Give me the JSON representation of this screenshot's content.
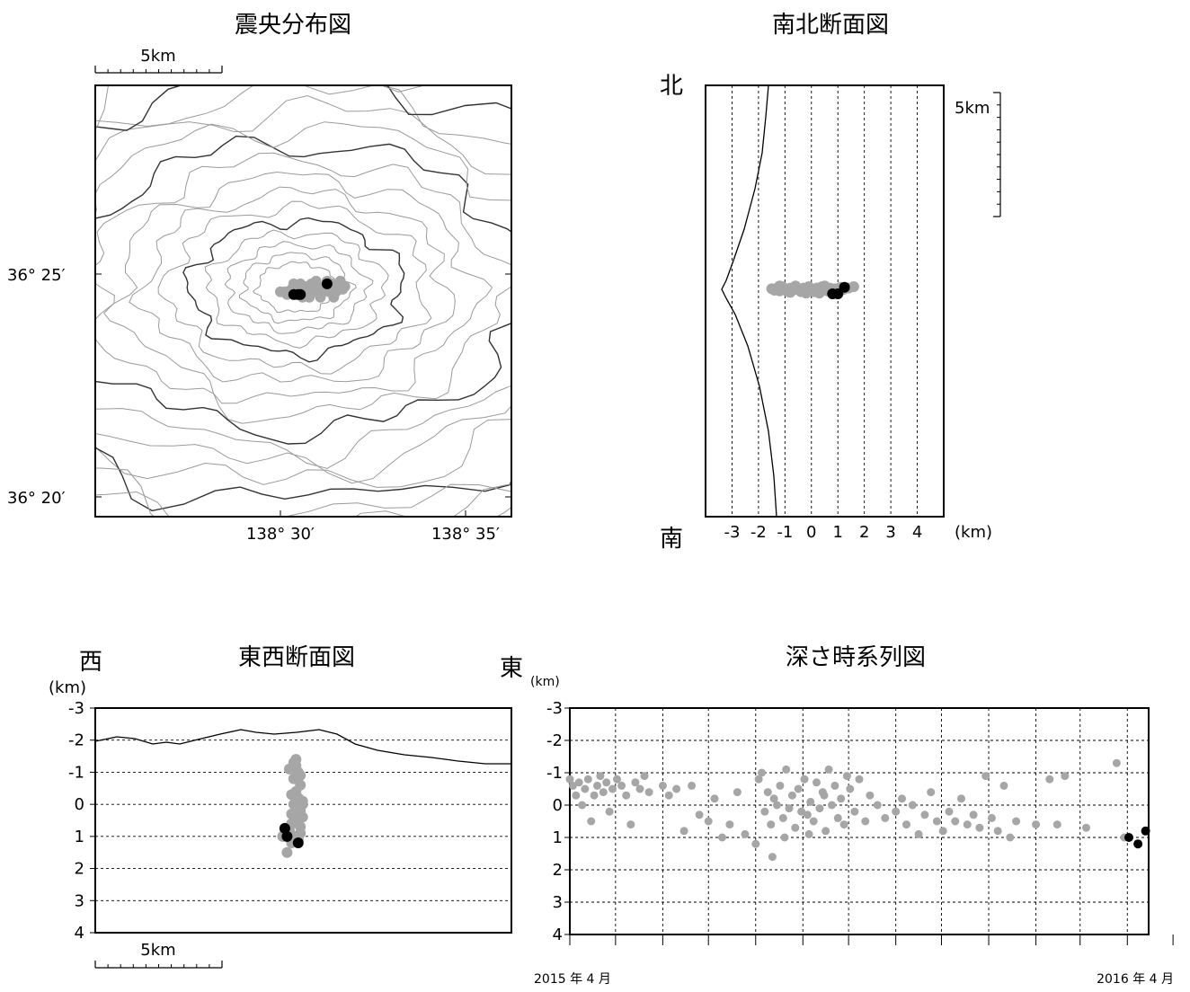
{
  "chart_data": [
    {
      "type": "scatter",
      "panel": "epicenter-map",
      "title": "震央分布図",
      "scale_bar": "5km",
      "x_ticks": [
        "138° 30′",
        "138° 35′"
      ],
      "y_ticks": [
        "36° 25′",
        "36° 20′"
      ],
      "colors": {
        "past": "#a6a6a6",
        "recent": "#000000",
        "contour": "#9a9a9a",
        "contour_major": "#333333"
      },
      "series": [
        {
          "name": "",
          "color": "#a6a6a6",
          "points": [
            [
              138.502,
              36.41
            ],
            [
              138.505,
              36.411
            ],
            [
              138.508,
              36.412
            ],
            [
              138.511,
              36.412
            ],
            [
              138.514,
              36.413
            ],
            [
              138.517,
              36.412
            ],
            [
              138.52,
              36.412
            ],
            [
              138.523,
              36.413
            ],
            [
              138.526,
              36.412
            ],
            [
              138.528,
              36.411
            ],
            [
              138.503,
              36.409
            ],
            [
              138.507,
              36.409
            ],
            [
              138.511,
              36.41
            ],
            [
              138.515,
              36.41
            ],
            [
              138.519,
              36.41
            ],
            [
              138.522,
              36.41
            ],
            [
              138.525,
              36.41
            ],
            [
              138.509,
              36.413
            ],
            [
              138.516,
              36.414
            ],
            [
              138.521,
              36.414
            ],
            [
              138.513,
              36.408
            ],
            [
              138.518,
              36.408
            ],
            [
              138.524,
              36.408
            ],
            [
              138.506,
              36.413
            ],
            [
              138.527,
              36.414
            ],
            [
              138.51,
              36.408
            ],
            [
              138.529,
              36.412
            ],
            [
              138.5,
              36.41
            ]
          ]
        },
        {
          "name": "",
          "color": "#000000",
          "points": [
            [
              138.506,
              36.409
            ],
            [
              138.508,
              36.409
            ],
            [
              138.509,
              36.409
            ],
            [
              138.521,
              36.413
            ]
          ]
        }
      ]
    },
    {
      "type": "scatter",
      "panel": "north-south-section",
      "title": "南北断面図",
      "north_label": "北",
      "south_label": "南",
      "scale_bar": "5km",
      "x_ticks": [
        "-3",
        "-2",
        "-1",
        "0",
        "1",
        "2",
        "3",
        "4"
      ],
      "x_unit": "(km)",
      "xlim": [
        -4,
        5
      ],
      "colors": {
        "past": "#a6a6a6",
        "recent": "#000000"
      },
      "series": [
        {
          "name": "",
          "color": "#a6a6a6",
          "points": [
            [
              -1.5,
              0.03
            ],
            [
              -1.4,
              0.05
            ],
            [
              -1.3,
              0.02
            ],
            [
              -1.2,
              0.06
            ],
            [
              -1.1,
              0.0
            ],
            [
              -1.0,
              0.04
            ],
            [
              -0.9,
              0.07
            ],
            [
              -0.8,
              0.02
            ],
            [
              -0.7,
              0.05
            ],
            [
              -0.6,
              -0.01
            ],
            [
              -0.5,
              0.04
            ],
            [
              -0.4,
              0.07
            ],
            [
              -0.3,
              0.02
            ],
            [
              -0.2,
              0.05
            ],
            [
              -0.1,
              0.0
            ],
            [
              0.0,
              0.04
            ],
            [
              0.1,
              0.07
            ],
            [
              0.2,
              0.02
            ],
            [
              0.3,
              0.05
            ],
            [
              0.4,
              0.0
            ],
            [
              0.5,
              0.04
            ],
            [
              0.6,
              0.06
            ],
            [
              0.7,
              0.02
            ],
            [
              0.8,
              0.05
            ],
            [
              0.9,
              0.03
            ],
            [
              1.0,
              0.06
            ],
            [
              1.1,
              0.01
            ],
            [
              1.2,
              0.04
            ],
            [
              1.4,
              0.02
            ],
            [
              1.6,
              0.0
            ],
            [
              -0.8,
              0.08
            ],
            [
              -0.2,
              0.09
            ],
            [
              0.3,
              0.09
            ],
            [
              0.8,
              0.09
            ],
            [
              -1.2,
              -0.01
            ],
            [
              0.5,
              -0.01
            ]
          ]
        },
        {
          "name": "",
          "color": "#000000",
          "points": [
            [
              0.8,
              0.1
            ],
            [
              1.0,
              0.1
            ],
            [
              1.25,
              0.01
            ]
          ]
        }
      ]
    },
    {
      "type": "scatter",
      "panel": "east-west-section",
      "title": "東西断面図",
      "west_label": "西",
      "east_label": "東",
      "y_unit": "(km)",
      "scale_bar": "5km",
      "ylim": [
        4,
        -3
      ],
      "y_ticks": [
        "-3",
        "-2",
        "-1",
        "0",
        "1",
        "2",
        "3",
        "4"
      ],
      "colors": {
        "past": "#a6a6a6",
        "recent": "#000000"
      },
      "series": [
        {
          "name": "",
          "color": "#a6a6a6",
          "points": [
            [
              138.507,
              -1.4
            ],
            [
              138.507,
              -1.2
            ],
            [
              138.508,
              -1.0
            ],
            [
              138.506,
              -0.8
            ],
            [
              138.509,
              -0.6
            ],
            [
              138.507,
              -0.4
            ],
            [
              138.508,
              -0.2
            ],
            [
              138.506,
              0.0
            ],
            [
              138.509,
              0.2
            ],
            [
              138.507,
              0.4
            ],
            [
              138.505,
              0.6
            ],
            [
              138.508,
              0.6
            ],
            [
              138.51,
              0.4
            ],
            [
              138.504,
              0.8
            ],
            [
              138.503,
              1.0
            ],
            [
              138.502,
              0.9
            ],
            [
              138.506,
              1.0
            ],
            [
              138.509,
              0.9
            ],
            [
              138.501,
              1.0
            ],
            [
              138.505,
              1.2
            ],
            [
              138.503,
              1.5
            ],
            [
              138.509,
              -0.9
            ],
            [
              138.505,
              -0.3
            ],
            [
              138.51,
              -0.1
            ],
            [
              138.505,
              0.3
            ],
            [
              138.509,
              0.7
            ],
            [
              138.504,
              -1.1
            ],
            [
              138.506,
              -1.3
            ],
            [
              138.51,
              0.0
            ],
            [
              138.508,
              1.1
            ]
          ]
        },
        {
          "name": "",
          "color": "#000000",
          "points": [
            [
              138.502,
              0.75
            ],
            [
              138.503,
              1.0
            ],
            [
              138.508,
              1.2
            ]
          ]
        }
      ]
    },
    {
      "type": "scatter",
      "panel": "depth-time-series",
      "title": "深さ時系列図",
      "y_unit": "(km)",
      "x_start_label": "2015 年 4 月",
      "x_end_label": "2016 年 4 月",
      "x_range": [
        "2015-04-01",
        "2016-04-15"
      ],
      "ylim": [
        4,
        -3
      ],
      "y_ticks": [
        "-3",
        "-2",
        "-1",
        "0",
        "1",
        "2",
        "3",
        "4"
      ],
      "colors": {
        "past": "#a6a6a6",
        "recent": "#000000"
      },
      "series": [
        {
          "name": "",
          "color": "#a6a6a6",
          "points": [
            [
              "2015-04-01",
              -0.8
            ],
            [
              "2015-04-03",
              -0.6
            ],
            [
              "2015-04-05",
              -0.3
            ],
            [
              "2015-04-07",
              -0.7
            ],
            [
              "2015-04-09",
              0.0
            ],
            [
              "2015-04-11",
              -0.5
            ],
            [
              "2015-04-13",
              -0.8
            ],
            [
              "2015-04-15",
              0.5
            ],
            [
              "2015-04-17",
              -0.3
            ],
            [
              "2015-04-19",
              -0.6
            ],
            [
              "2015-04-21",
              -0.9
            ],
            [
              "2015-04-23",
              -0.4
            ],
            [
              "2015-04-25",
              -0.7
            ],
            [
              "2015-04-27",
              0.2
            ],
            [
              "2015-04-29",
              -0.5
            ],
            [
              "2015-05-02",
              -0.8
            ],
            [
              "2015-05-05",
              -0.6
            ],
            [
              "2015-05-08",
              -0.3
            ],
            [
              "2015-05-11",
              0.6
            ],
            [
              "2015-05-14",
              -0.7
            ],
            [
              "2015-05-17",
              -0.5
            ],
            [
              "2015-05-20",
              -0.9
            ],
            [
              "2015-05-23",
              -0.4
            ],
            [
              "2015-06-01",
              -0.6
            ],
            [
              "2015-06-05",
              -0.3
            ],
            [
              "2015-06-10",
              -0.5
            ],
            [
              "2015-06-15",
              0.8
            ],
            [
              "2015-06-20",
              -0.6
            ],
            [
              "2015-06-25",
              0.3
            ],
            [
              "2015-07-01",
              0.5
            ],
            [
              "2015-07-05",
              -0.2
            ],
            [
              "2015-07-10",
              1.0
            ],
            [
              "2015-07-15",
              0.6
            ],
            [
              "2015-07-20",
              -0.4
            ],
            [
              "2015-07-25",
              0.9
            ],
            [
              "2015-08-01",
              1.2
            ],
            [
              "2015-08-03",
              -0.8
            ],
            [
              "2015-08-05",
              -1.0
            ],
            [
              "2015-08-07",
              0.2
            ],
            [
              "2015-08-09",
              -0.4
            ],
            [
              "2015-08-11",
              0.6
            ],
            [
              "2015-08-13",
              -0.2
            ],
            [
              "2015-08-15",
              0.0
            ],
            [
              "2015-08-17",
              -0.6
            ],
            [
              "2015-08-19",
              0.4
            ],
            [
              "2015-08-21",
              -1.1
            ],
            [
              "2015-08-23",
              0.1
            ],
            [
              "2015-08-25",
              -0.3
            ],
            [
              "2015-08-27",
              0.7
            ],
            [
              "2015-08-29",
              -0.5
            ],
            [
              "2015-08-31",
              0.2
            ],
            [
              "2015-09-02",
              -0.8
            ],
            [
              "2015-09-04",
              0.3
            ],
            [
              "2015-09-06",
              -0.1
            ],
            [
              "2015-09-08",
              0.5
            ],
            [
              "2015-09-10",
              -0.7
            ],
            [
              "2015-09-12",
              0.1
            ],
            [
              "2015-09-14",
              -0.4
            ],
            [
              "2015-09-16",
              0.8
            ],
            [
              "2015-09-18",
              -1.1
            ],
            [
              "2015-09-20",
              0.0
            ],
            [
              "2015-09-22",
              -0.6
            ],
            [
              "2015-09-24",
              0.4
            ],
            [
              "2015-09-26",
              -0.2
            ],
            [
              "2015-09-28",
              0.6
            ],
            [
              "2015-09-30",
              -0.9
            ],
            [
              "2015-08-12",
              1.6
            ],
            [
              "2015-08-20",
              1.0
            ],
            [
              "2015-09-05",
              0.9
            ],
            [
              "2015-09-15",
              -0.3
            ],
            [
              "2015-10-02",
              -0.5
            ],
            [
              "2015-10-05",
              0.2
            ],
            [
              "2015-10-08",
              -0.8
            ],
            [
              "2015-10-12",
              0.5
            ],
            [
              "2015-10-15",
              -0.3
            ],
            [
              "2015-10-20",
              0.0
            ],
            [
              "2015-10-25",
              0.4
            ],
            [
              "2015-11-01",
              0.2
            ],
            [
              "2015-11-05",
              -0.2
            ],
            [
              "2015-11-08",
              0.6
            ],
            [
              "2015-11-12",
              0.0
            ],
            [
              "2015-11-16",
              0.9
            ],
            [
              "2015-11-20",
              0.3
            ],
            [
              "2015-11-24",
              -0.4
            ],
            [
              "2015-11-28",
              0.5
            ],
            [
              "2015-12-02",
              0.8
            ],
            [
              "2015-12-06",
              0.2
            ],
            [
              "2015-12-10",
              0.5
            ],
            [
              "2015-12-14",
              -0.2
            ],
            [
              "2015-12-18",
              0.6
            ],
            [
              "2015-12-22",
              0.3
            ],
            [
              "2015-12-26",
              0.7
            ],
            [
              "2015-12-30",
              -0.9
            ],
            [
              "2016-01-03",
              0.4
            ],
            [
              "2016-01-07",
              0.8
            ],
            [
              "2016-01-11",
              -0.6
            ],
            [
              "2016-01-15",
              1.0
            ],
            [
              "2016-01-19",
              0.5
            ],
            [
              "2016-02-01",
              0.6
            ],
            [
              "2016-02-10",
              -0.8
            ],
            [
              "2016-02-15",
              0.6
            ],
            [
              "2016-02-20",
              -0.9
            ],
            [
              "2016-03-05",
              0.7
            ],
            [
              "2016-03-25",
              -1.3
            ],
            [
              "2016-03-30",
              1.0
            ]
          ]
        },
        {
          "name": "",
          "color": "#000000",
          "points": [
            [
              "2016-04-02",
              1.0
            ],
            [
              "2016-04-08",
              1.2
            ],
            [
              "2016-04-13",
              0.8
            ]
          ]
        }
      ]
    }
  ]
}
